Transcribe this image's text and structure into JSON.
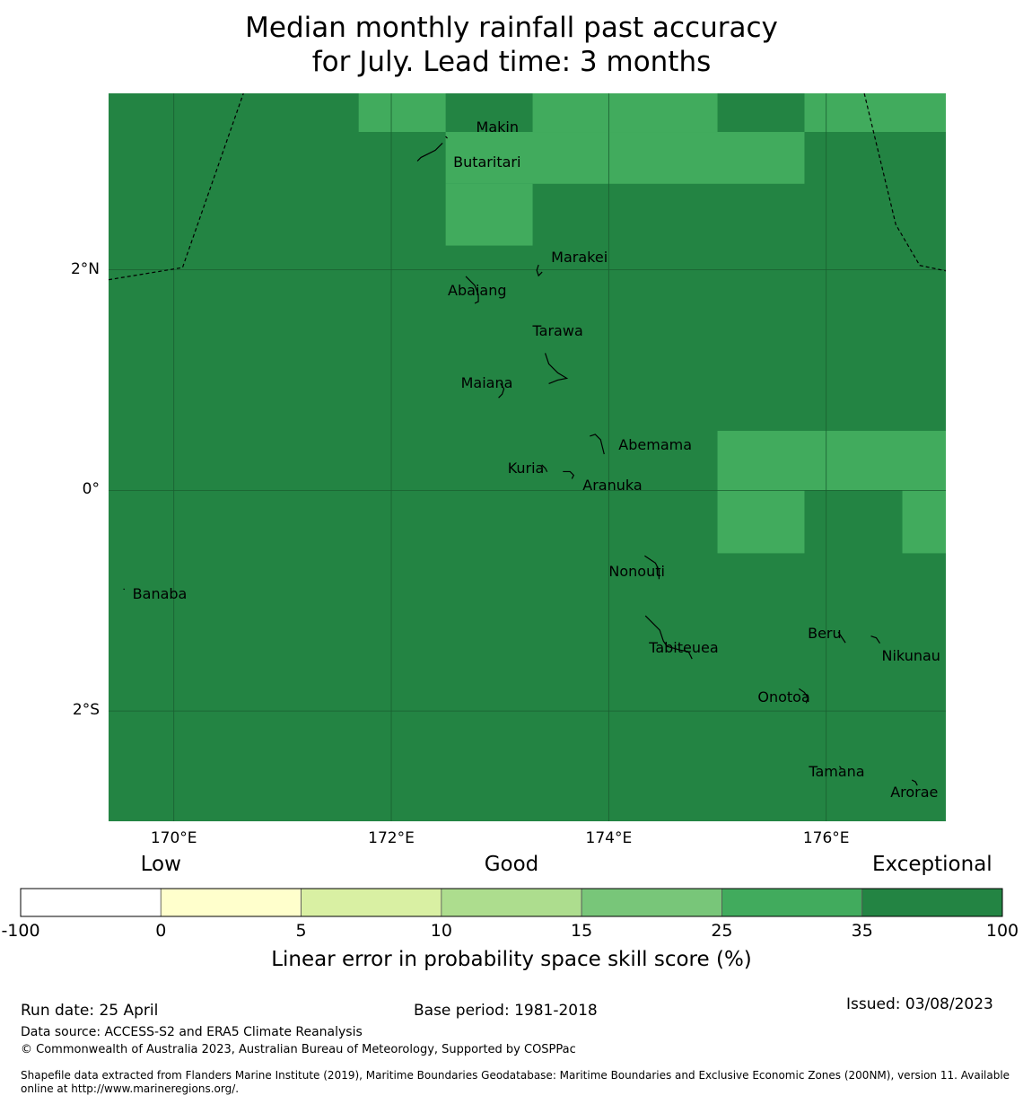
{
  "title": {
    "line1": "Median monthly rainfall past accuracy",
    "line2": "for July. Lead time: 3 months"
  },
  "map": {
    "lon_range": [
      169.4,
      177.1
    ],
    "lat_range": [
      -3.0,
      3.6
    ],
    "colors": {
      "exceptional": "#238443",
      "high": "#41ab5d",
      "grid": "#1a5e30"
    },
    "lat_ticks": [
      {
        "lat": 2,
        "label": "2°N"
      },
      {
        "lat": 0,
        "label": "0°"
      },
      {
        "lat": -2,
        "label": "2°S"
      }
    ],
    "lon_ticks": [
      {
        "lon": 170,
        "label": "170°E"
      },
      {
        "lon": 172,
        "label": "172°E"
      },
      {
        "lon": 174,
        "label": "174°E"
      },
      {
        "lon": 176,
        "label": "176°E"
      }
    ],
    "high_skill_cells": [
      {
        "lon": [
          171.7,
          172.5
        ],
        "lat": [
          3.25,
          3.6
        ]
      },
      {
        "lon": [
          173.3,
          175.0
        ],
        "lat": [
          3.25,
          3.6
        ]
      },
      {
        "lon": [
          175.8,
          177.1
        ],
        "lat": [
          3.25,
          3.6
        ]
      },
      {
        "lon": [
          172.5,
          175.8
        ],
        "lat": [
          2.78,
          3.25
        ]
      },
      {
        "lon": [
          172.5,
          173.3
        ],
        "lat": [
          2.22,
          2.78
        ]
      },
      {
        "lon": [
          175.0,
          177.1
        ],
        "lat": [
          0.0,
          0.54
        ]
      },
      {
        "lon": [
          175.0,
          175.8
        ],
        "lat": [
          -0.57,
          0.0
        ]
      },
      {
        "lon": [
          176.7,
          177.1
        ],
        "lat": [
          -0.57,
          0.0
        ]
      }
    ],
    "islands": [
      {
        "name": "Makin",
        "lon": 172.78,
        "lat": 3.29
      },
      {
        "name": "Butaritari",
        "lon": 172.57,
        "lat": 2.97
      },
      {
        "name": "Marakei",
        "lon": 173.47,
        "lat": 2.11
      },
      {
        "name": "Abaiang",
        "lon": 172.52,
        "lat": 1.81
      },
      {
        "name": "Tarawa",
        "lon": 173.3,
        "lat": 1.44
      },
      {
        "name": "Maiana",
        "lon": 172.64,
        "lat": 0.97
      },
      {
        "name": "Abemama",
        "lon": 174.09,
        "lat": 0.41
      },
      {
        "name": "Kuria",
        "lon": 173.07,
        "lat": 0.2
      },
      {
        "name": "Aranuka",
        "lon": 173.76,
        "lat": 0.04
      },
      {
        "name": "Nonouti",
        "lon": 174.0,
        "lat": -0.74
      },
      {
        "name": "Banaba",
        "lon": 169.62,
        "lat": -0.94
      },
      {
        "name": "Beru",
        "lon": 175.83,
        "lat": -1.3
      },
      {
        "name": "Tabiteuea",
        "lon": 174.37,
        "lat": -1.43
      },
      {
        "name": "Nikunau",
        "lon": 176.51,
        "lat": -1.5
      },
      {
        "name": "Onotoa",
        "lon": 175.37,
        "lat": -1.88
      },
      {
        "name": "Tamana",
        "lon": 175.84,
        "lat": -2.55
      },
      {
        "name": "Arorae",
        "lon": 176.59,
        "lat": -2.74
      }
    ],
    "eez_boundaries": [
      [
        [
          169.4,
          1.91
        ],
        [
          170.08,
          2.02
        ],
        [
          170.64,
          3.6
        ]
      ],
      [
        [
          176.35,
          3.6
        ],
        [
          176.64,
          2.41
        ],
        [
          176.86,
          2.04
        ],
        [
          177.1,
          1.99
        ]
      ]
    ]
  },
  "colorbar": {
    "categories": [
      {
        "label": "Low",
        "at": 1
      },
      {
        "label": "Good",
        "at": 3.5
      },
      {
        "label": "Exceptional",
        "at": 6.5
      }
    ],
    "ticks": [
      "-100",
      "0",
      "5",
      "10",
      "15",
      "25",
      "35",
      "100"
    ],
    "colors": [
      "#ffffff",
      "#ffffcc",
      "#d9f0a3",
      "#addd8e",
      "#78c679",
      "#41ab5d",
      "#238443"
    ],
    "label": "Linear error in probability space skill score (%)"
  },
  "footer": {
    "run_date": "Run date: 25 April",
    "base_period": "Base period: 1981-2018",
    "issued": "Issued: 03/08/2023",
    "data_source": "Data source: ACCESS-S2 and ERA5 Climate Reanalysis",
    "copyright": "© Commonwealth of Australia 2023, Australian Bureau of Meteorology, Supported by COSPPac",
    "shapefile_line1": "Shapefile data extracted from Flanders Marine Institute (2019), Maritime Boundaries Geodatabase: Maritime Boundaries and Exclusive Economic Zones (200NM), version 11. Available",
    "shapefile_line2": "online at http://www.marineregions.org/."
  }
}
